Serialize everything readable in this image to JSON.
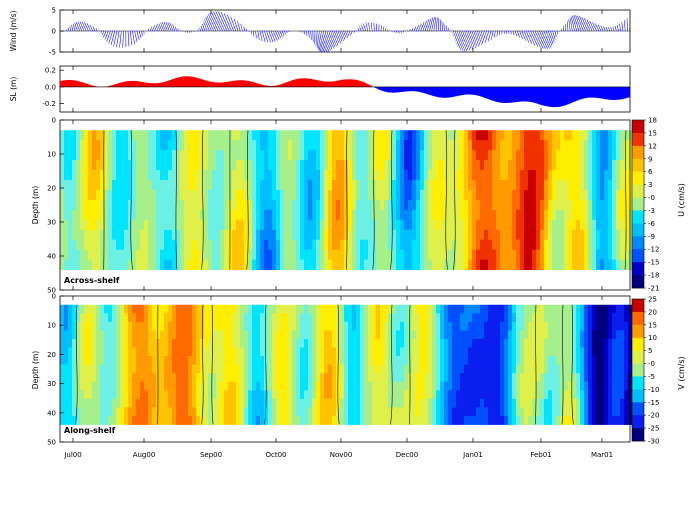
{
  "chart_data": [
    {
      "type": "line",
      "variant": "wind-stick",
      "ylabel": "Wind (m/s)",
      "ylim": [
        -5,
        5
      ],
      "yticks": [
        -5,
        0,
        5
      ],
      "series_color": "#0000ff",
      "x": [
        "Jul00",
        "Aug00",
        "Sep00",
        "Oct00",
        "Nov00",
        "Dec00",
        "Jan01",
        "Feb01",
        "Mar01"
      ],
      "values": [
        1.5,
        -0.5,
        1.0,
        -0.5,
        -1.5,
        0.5,
        -2.0,
        -0.5,
        1.5
      ]
    },
    {
      "type": "area",
      "ylabel": "SL (m)",
      "ylim": [
        -0.3,
        0.25
      ],
      "yticks": [
        0.2,
        0.0,
        -0.2
      ],
      "positive_color": "#ff0000",
      "negative_color": "#0000ff",
      "x": [
        "Jul00",
        "Aug00",
        "Sep00",
        "Oct00",
        "Nov00",
        "Dec00",
        "Jan01",
        "Feb01",
        "Mar01"
      ],
      "values": [
        0.05,
        0.06,
        0.08,
        0.06,
        0.07,
        -0.05,
        -0.15,
        -0.2,
        -0.15
      ]
    },
    {
      "type": "heatmap",
      "label": "Across-shelf",
      "ylabel": "Depth (m)",
      "ylim": [
        50,
        0
      ],
      "yticks": [
        0,
        10,
        20,
        30,
        40,
        50
      ],
      "depth_range": [
        3,
        44
      ],
      "colorbar_label": "U (cm/s)",
      "colorbar_ticks": [
        18,
        15,
        12,
        9,
        6,
        3,
        "-0",
        -3,
        -6,
        -9,
        -12,
        -15,
        -18,
        -21
      ],
      "x": [
        "Jul00",
        "Aug00",
        "Sep00",
        "Oct00",
        "Nov00",
        "Dec00",
        "Jan01",
        "Feb01",
        "Mar01"
      ],
      "values": [
        -1,
        -1,
        0,
        -3,
        1,
        -5,
        8,
        14,
        -6
      ]
    },
    {
      "type": "heatmap",
      "label": "Along-shelf",
      "ylabel": "Depth (m)",
      "ylim": [
        50,
        0
      ],
      "yticks": [
        0,
        10,
        20,
        30,
        40,
        50
      ],
      "depth_range": [
        3,
        44
      ],
      "colorbar_label": "V (cm/s)",
      "colorbar_ticks": [
        25,
        20,
        15,
        10,
        5,
        "-0",
        -5,
        -10,
        -15,
        -20,
        -25,
        -30
      ],
      "x": [
        "Jul00",
        "Aug00",
        "Sep00",
        "Oct00",
        "Nov00",
        "Dec00",
        "Jan01",
        "Feb01",
        "Mar01"
      ],
      "values": [
        -5,
        12,
        8,
        -3,
        0,
        5,
        -25,
        5,
        -25
      ]
    }
  ]
}
